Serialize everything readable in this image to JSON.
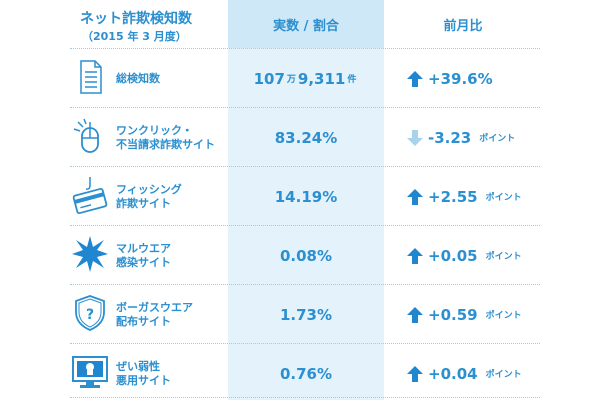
{
  "header": {
    "title": "ネット詐欺検知数",
    "subtitle": "（2015 年 3 月度）",
    "col_value": "実数 / 割合",
    "col_change": "前月比"
  },
  "colors": {
    "accent": "#2b8fd0",
    "up": "#1f86cf",
    "down": "#a8d3ec",
    "col_bg": "#e3f2fb"
  },
  "rows": [
    {
      "icon": "document-icon",
      "label1": "総検知数",
      "label2": "",
      "value_main": "107",
      "value_unit1": "万",
      "value_rest": "9,311",
      "value_unit2": "件",
      "direction": "up",
      "change": "+39.6%",
      "change_unit": ""
    },
    {
      "icon": "mouse-click-icon",
      "label1": "ワンクリック・",
      "label2": "不当請求詐欺サイト",
      "value_main": "83.24%",
      "value_unit1": "",
      "value_rest": "",
      "value_unit2": "",
      "direction": "down",
      "change": "-3.23",
      "change_unit": "ポイント"
    },
    {
      "icon": "phishing-card-icon",
      "label1": "フィッシング",
      "label2": "詐欺サイト",
      "value_main": "14.19%",
      "value_unit1": "",
      "value_rest": "",
      "value_unit2": "",
      "direction": "up",
      "change": "+2.55",
      "change_unit": "ポイント"
    },
    {
      "icon": "malware-burst-icon",
      "label1": "マルウエア",
      "label2": "感染サイト",
      "value_main": "0.08%",
      "value_unit1": "",
      "value_rest": "",
      "value_unit2": "",
      "direction": "up",
      "change": "+0.05",
      "change_unit": "ポイント"
    },
    {
      "icon": "shield-question-icon",
      "label1": "ボーガスウエア",
      "label2": "配布サイト",
      "value_main": "1.73%",
      "value_unit1": "",
      "value_rest": "",
      "value_unit2": "",
      "direction": "up",
      "change": "+0.59",
      "change_unit": "ポイント"
    },
    {
      "icon": "vulnerable-monitor-icon",
      "label1": "ぜい弱性",
      "label2": "悪用サイト",
      "value_main": "0.76%",
      "value_unit1": "",
      "value_rest": "",
      "value_unit2": "",
      "direction": "up",
      "change": "+0.04",
      "change_unit": "ポイント"
    }
  ]
}
